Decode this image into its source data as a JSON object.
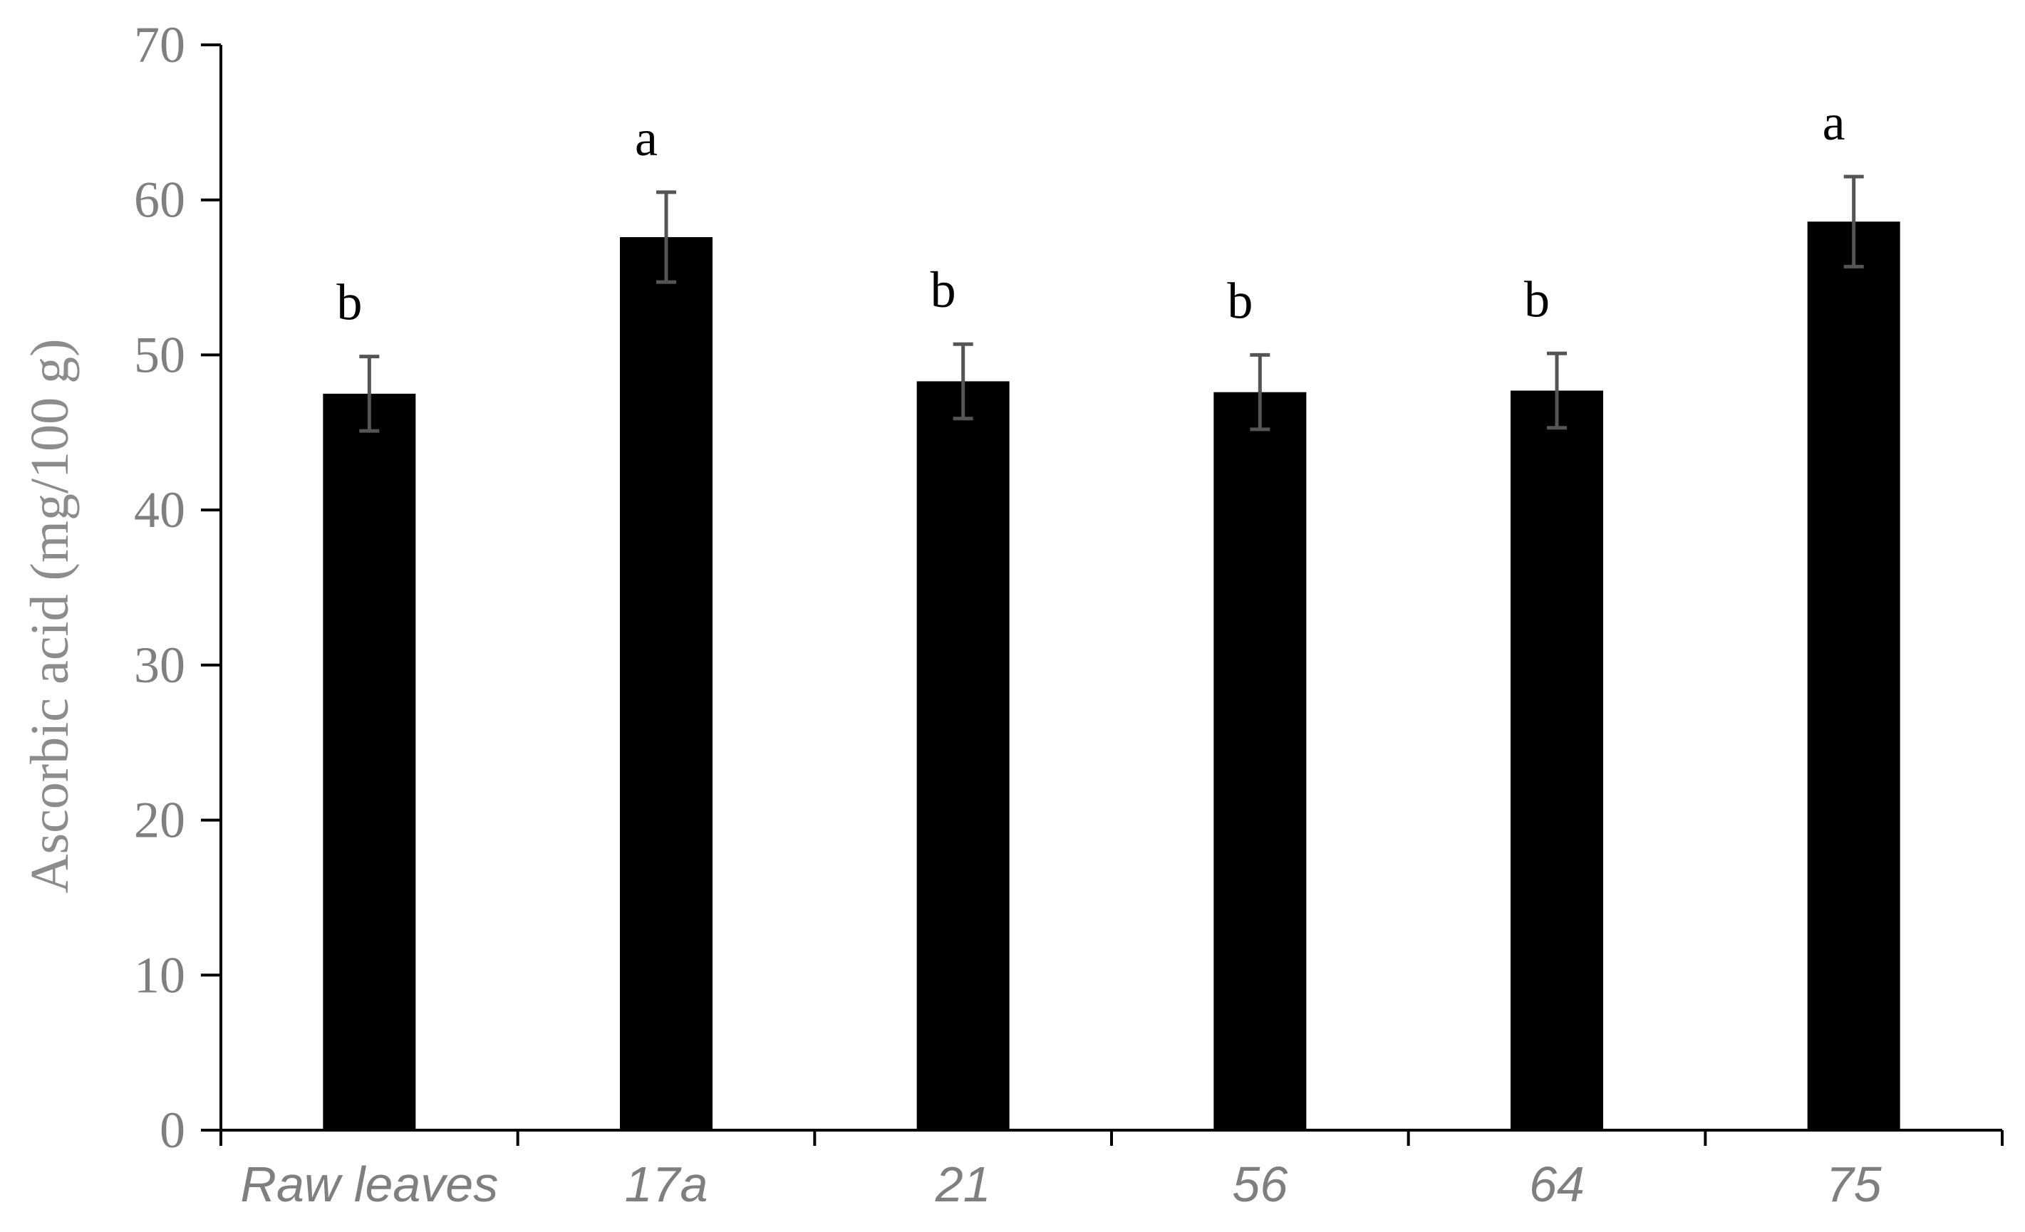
{
  "chart_data": {
    "type": "bar",
    "title": "",
    "xlabel": "",
    "ylabel": "Ascorbic acid  (mg/100 g)",
    "ylim": [
      0,
      70
    ],
    "yticks": [
      0,
      10,
      20,
      30,
      40,
      50,
      60,
      70
    ],
    "categories": [
      "Raw leaves",
      "17a",
      "21",
      "56",
      "64",
      "75"
    ],
    "series": [
      {
        "values": [
          47.5,
          57.6,
          48.3,
          47.6,
          47.7,
          58.6
        ],
        "errors": [
          2.4,
          2.9,
          2.4,
          2.4,
          2.4,
          2.9
        ],
        "significance": [
          "b",
          "a",
          "b",
          "b",
          "b",
          "a"
        ]
      }
    ],
    "grid": false,
    "colors": {
      "bar": "#000000",
      "error_bar": "#555555",
      "tick_label": "#7f7f7f",
      "axis_label": "#8c8c8c",
      "axis": "#000000"
    }
  }
}
